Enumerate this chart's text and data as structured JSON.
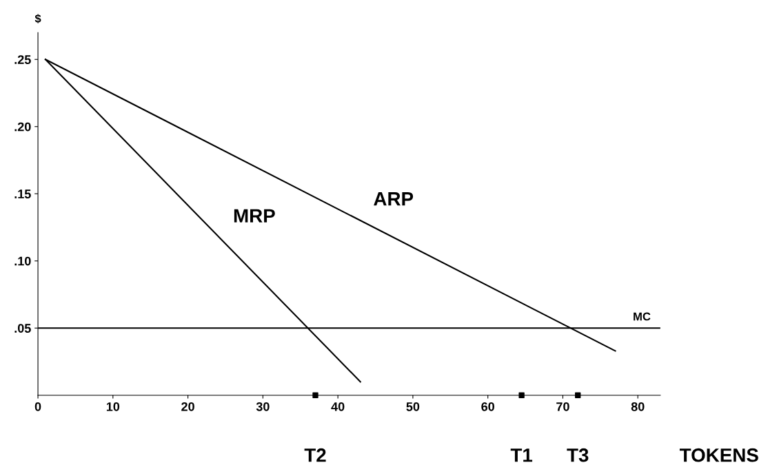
{
  "chart_data": {
    "type": "line",
    "ylabel": "$",
    "xlabel": "TOKENS",
    "series": [
      {
        "name": "ARP",
        "color": "#000000",
        "x": [
          1,
          77
        ],
        "values": [
          0.25,
          0.033
        ]
      },
      {
        "name": "MRP",
        "color": "#000000",
        "x": [
          1,
          43
        ],
        "values": [
          0.25,
          0.01
        ]
      },
      {
        "type": "scatter",
        "color": "#000000",
        "marker": "square",
        "x": [
          37,
          64.5,
          72
        ],
        "values": [
          0,
          0,
          0
        ]
      }
    ],
    "ref_lines": [
      {
        "axis": "y",
        "value": 0.05,
        "label": "MC",
        "color": "#000000"
      }
    ],
    "annotations": [
      {
        "text": "T2",
        "x": 37,
        "y": 0
      },
      {
        "text": "T1",
        "x": 64.5,
        "y": 0
      },
      {
        "text": "T3",
        "x": 72,
        "y": 0
      }
    ],
    "xlim": [
      0,
      83
    ],
    "ylim": [
      0,
      0.27
    ],
    "xticks": [
      0,
      10,
      20,
      30,
      40,
      50,
      60,
      70,
      80
    ],
    "yticks": [
      {
        "value": 0.05,
        "label": ".05"
      },
      {
        "value": 0.1,
        "label": ".10"
      },
      {
        "value": 0.15,
        "label": ".15"
      },
      {
        "value": 0.2,
        "label": ".20"
      },
      {
        "value": 0.25,
        "label": ".25"
      }
    ],
    "grid": false,
    "legend": false,
    "marker": "none",
    "line_style": "solid"
  }
}
